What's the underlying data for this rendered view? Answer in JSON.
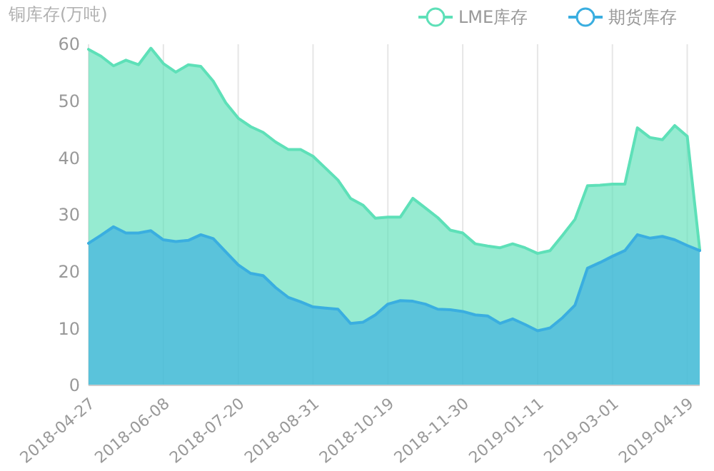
{
  "chart_data": {
    "type": "area",
    "ylabel": "铜库存(万吨)",
    "categories": [
      "2018-04-27",
      null,
      null,
      null,
      null,
      null,
      "2018-06-08",
      null,
      null,
      null,
      null,
      null,
      "2018-07-20",
      null,
      null,
      null,
      null,
      null,
      "2018-08-31",
      null,
      null,
      null,
      null,
      null,
      "2018-10-19",
      null,
      null,
      null,
      null,
      null,
      "2018-11-30",
      null,
      null,
      null,
      null,
      null,
      "2019-01-11",
      null,
      null,
      null,
      null,
      null,
      "2019-03-01",
      null,
      null,
      null,
      null,
      null,
      "2019-04-19",
      null
    ],
    "series": [
      {
        "name": "LME库存",
        "color": "#5ee0b8",
        "values": [
          59.1,
          57.9,
          56.2,
          57.2,
          56.4,
          59.3,
          56.6,
          55.1,
          56.4,
          56.1,
          53.5,
          49.7,
          47.0,
          45.5,
          44.5,
          42.8,
          41.5,
          41.5,
          40.3,
          38.2,
          36.1,
          32.9,
          31.7,
          29.4,
          29.6,
          29.6,
          32.9,
          31.2,
          29.5,
          27.3,
          26.8,
          24.9,
          24.5,
          24.2,
          24.9,
          24.2,
          23.2,
          23.7,
          26.4,
          29.2,
          35.1,
          35.2,
          35.4,
          35.4,
          45.3,
          43.6,
          43.2,
          45.7,
          43.8,
          23.9
        ]
      },
      {
        "name": "期货库存",
        "color": "#3aaee0",
        "values": [
          25.0,
          26.4,
          27.9,
          26.8,
          26.8,
          27.2,
          25.6,
          25.3,
          25.5,
          26.5,
          25.8,
          23.5,
          21.2,
          19.7,
          19.3,
          17.2,
          15.5,
          14.7,
          13.8,
          13.6,
          13.4,
          10.9,
          11.1,
          12.4,
          14.3,
          14.9,
          14.8,
          14.3,
          13.4,
          13.3,
          13.0,
          12.4,
          12.2,
          10.9,
          11.7,
          10.7,
          9.6,
          10.1,
          11.9,
          14.1,
          20.6,
          21.6,
          22.7,
          23.7,
          26.5,
          25.9,
          26.2,
          25.6,
          24.6,
          23.7
        ]
      }
    ],
    "ylim": [
      0,
      60
    ],
    "yticks": [
      0,
      10,
      20,
      30,
      40,
      50,
      60
    ],
    "grid": "x",
    "legend": "top right"
  }
}
